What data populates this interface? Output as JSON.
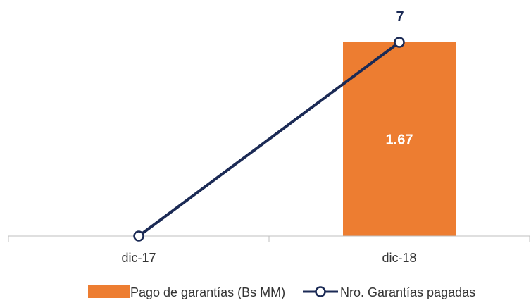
{
  "chart_data": {
    "type": "bar",
    "categories": [
      "dic-17",
      "dic-18"
    ],
    "series": [
      {
        "name": "Pago de garantías (Bs MM)",
        "type": "bar",
        "values": [
          0,
          1.67
        ],
        "color": "#ED7D31",
        "labels": [
          "",
          "1.67"
        ]
      },
      {
        "name": "Nro. Garantías pagadas",
        "type": "line",
        "values": [
          0,
          7
        ],
        "color": "#1B2A55",
        "marker": "open-circle",
        "labels": [
          "",
          "7"
        ]
      }
    ],
    "legend": "bottom",
    "grid": false,
    "axes_visible": false
  }
}
